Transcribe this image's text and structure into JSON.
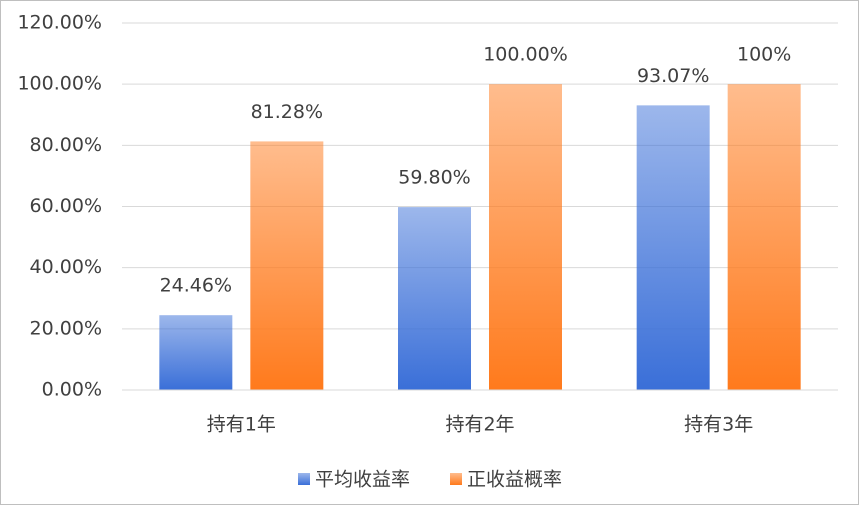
{
  "chart_data": {
    "type": "bar",
    "categories": [
      "持有1年",
      "持有2年",
      "持有3年"
    ],
    "series": [
      {
        "name": "平均收益率",
        "color": "#3a6fd8",
        "values": [
          24.46,
          59.8,
          93.07
        ],
        "value_labels": [
          "24.46%",
          "59.80%",
          "93.07%"
        ]
      },
      {
        "name": "正收益概率",
        "color": "#ff7a1c",
        "values": [
          81.28,
          100.0,
          100
        ],
        "value_labels": [
          "81.28%",
          "100.00%",
          "100%"
        ]
      }
    ],
    "ylim": [
      0,
      120
    ],
    "yticks": [
      {
        "value": 0,
        "label": "0.00%"
      },
      {
        "value": 20,
        "label": "20.00%"
      },
      {
        "value": 40,
        "label": "40.00%"
      },
      {
        "value": 60,
        "label": "60.00%"
      },
      {
        "value": 80,
        "label": "80.00%"
      },
      {
        "value": 100,
        "label": "100.00%"
      },
      {
        "value": 120,
        "label": "120.00%"
      }
    ],
    "grid": true,
    "legend": "bottom"
  }
}
